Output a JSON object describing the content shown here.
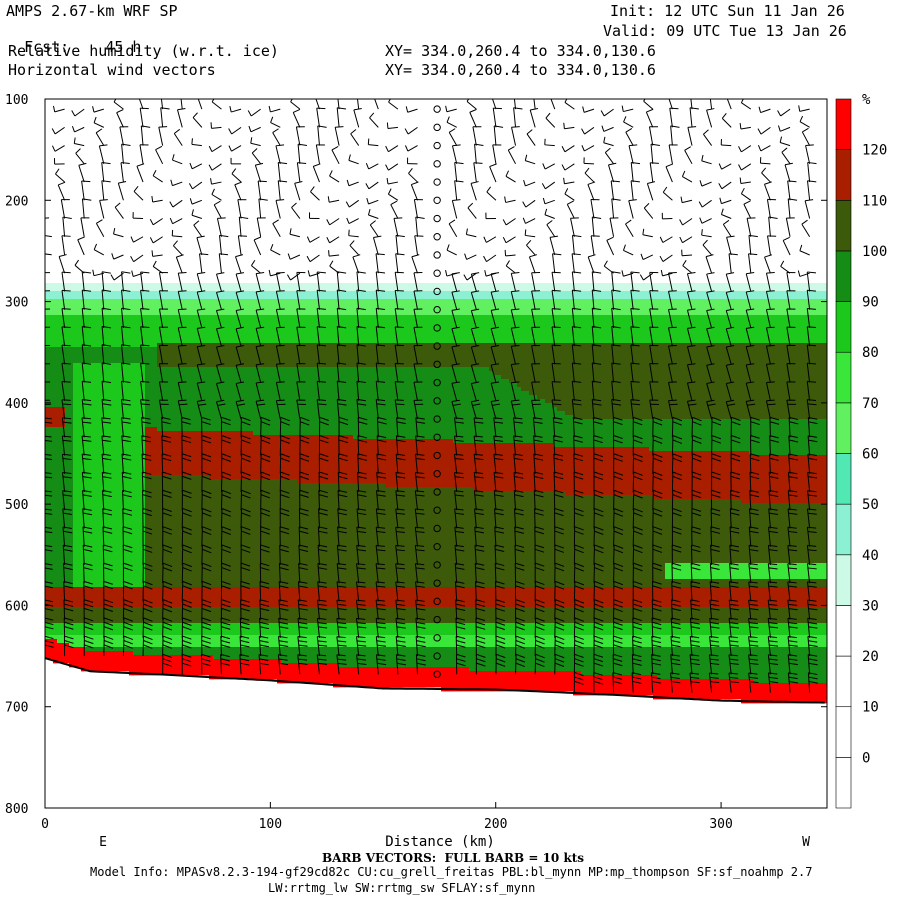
{
  "header": {
    "title": "AMPS 2.67-km WRF SP",
    "fcst_label": "Fcst:",
    "fcst_value": "45 h",
    "field1": "Relative humidity (w.r.t. ice)",
    "field2": "Horizontal wind vectors",
    "init": "Init: 12 UTC Sun 11 Jan 26",
    "valid": "Valid: 09 UTC Tue 13 Jan 26",
    "xy1": "XY= 334.0,260.4 to 334.0,130.6",
    "xy2": "XY= 334.0,260.4 to 334.0,130.6"
  },
  "footer": {
    "barb_note": "BARB VECTORS:  FULL BARB = 10 kts",
    "model_info": "Model Info: MPASv8.2.3-194-gf29cd82c CU:cu_grell_freitas PBL:bl_mynn MP:mp_thompson SF:sf_noahmp 2.7",
    "model_info2": "LW:rrtmg_lw SW:rrtmg_sw SFLAY:sf_mynn"
  },
  "chart_data": {
    "type": "heatmap",
    "xlabel": "Distance (km)",
    "ylabel": "",
    "xlim": [
      0,
      347
    ],
    "ylim": [
      800,
      100
    ],
    "x_ticks": [
      0,
      100,
      200,
      300
    ],
    "y_ticks": [
      100,
      200,
      300,
      400,
      500,
      600,
      700,
      800
    ],
    "left_end_label": "E",
    "right_end_label": "W",
    "colorbar_unit": "%",
    "colorbar_ticks": [
      0,
      10,
      20,
      30,
      40,
      50,
      60,
      70,
      80,
      90,
      100,
      110,
      120
    ],
    "colorbar_levels": [
      {
        "from": -10,
        "to": 0,
        "color": "#ffffff"
      },
      {
        "from": 0,
        "to": 10,
        "color": "#ffffff"
      },
      {
        "from": 10,
        "to": 20,
        "color": "#ffffff"
      },
      {
        "from": 20,
        "to": 30,
        "color": "#ffffff"
      },
      {
        "from": 30,
        "to": 40,
        "color": "#cdfae6"
      },
      {
        "from": 40,
        "to": 50,
        "color": "#8cf0d2"
      },
      {
        "from": 50,
        "to": 60,
        "color": "#52e8b4"
      },
      {
        "from": 60,
        "to": 70,
        "color": "#60f060"
      },
      {
        "from": 70,
        "to": 80,
        "color": "#3ae63a"
      },
      {
        "from": 80,
        "to": 90,
        "color": "#1cc81c"
      },
      {
        "from": 90,
        "to": 100,
        "color": "#158c15"
      },
      {
        "from": 100,
        "to": 110,
        "color": "#3c5a0a"
      },
      {
        "from": 110,
        "to": 120,
        "color": "#aa1e00"
      },
      {
        "from": 120,
        "to": 130,
        "color": "#ff0000"
      }
    ],
    "terrain_pressure": [
      {
        "x": 0,
        "p": 652
      },
      {
        "x": 20,
        "p": 665
      },
      {
        "x": 50,
        "p": 668
      },
      {
        "x": 100,
        "p": 674
      },
      {
        "x": 150,
        "p": 682
      },
      {
        "x": 200,
        "p": 683
      },
      {
        "x": 250,
        "p": 688
      },
      {
        "x": 300,
        "p": 694
      },
      {
        "x": 347,
        "p": 696
      }
    ]
  }
}
